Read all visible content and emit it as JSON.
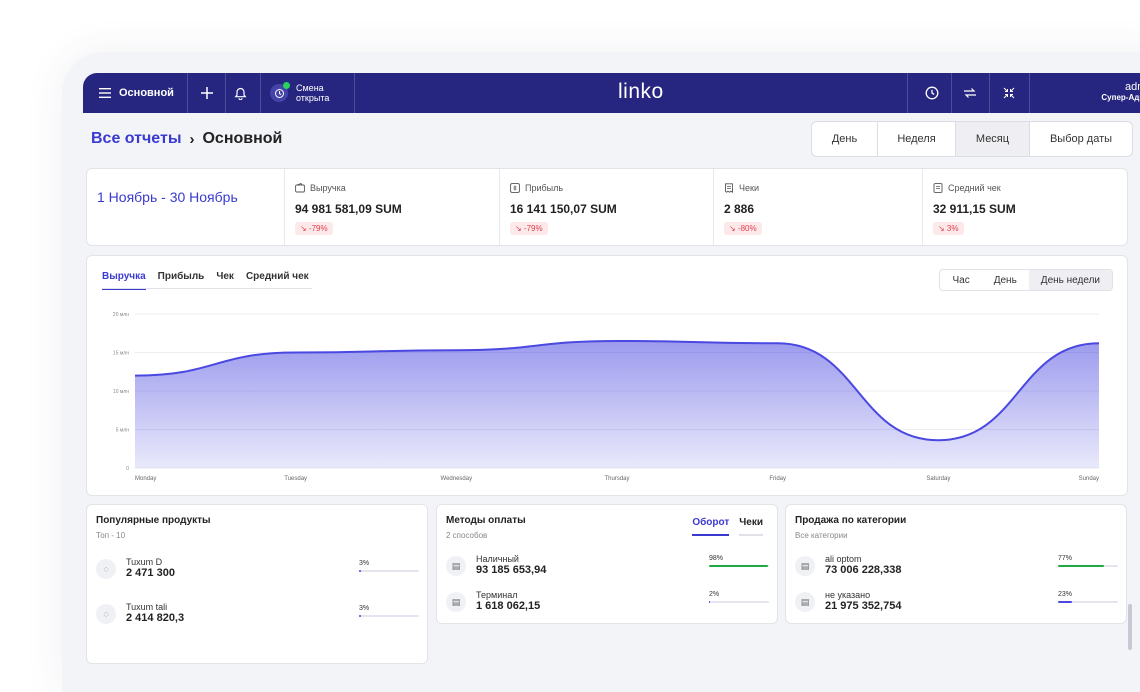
{
  "topbar": {
    "menu_label": "Основной",
    "shift_line1": "Смена",
    "shift_line2": "открыта",
    "logo": "linko",
    "user_name": "admin",
    "user_role": "Супер-Админ",
    "avatar": "ad"
  },
  "breadcrumb": {
    "link": "Все отчеты",
    "separator": "›",
    "current": "Основной"
  },
  "period_tabs": [
    "День",
    "Неделя",
    "Месяц",
    "Выбор даты"
  ],
  "period_active": "Месяц",
  "kpis": {
    "range": "1 Ноябрь - 30 Ноябрь",
    "items": [
      {
        "label": "Выручка",
        "value": "94 981 581,09 SUM",
        "change": "↘ -79%",
        "icon": "wallet-icon"
      },
      {
        "label": "Прибыль",
        "value": "16 141 150,07 SUM",
        "change": "↘ -79%",
        "icon": "money-icon"
      },
      {
        "label": "Чеки",
        "value": "2 886",
        "change": "↘ -80%",
        "icon": "receipt-icon"
      },
      {
        "label": "Средний чек",
        "value": "32 911,15 SUM",
        "change": "↘ 3%",
        "icon": "receipt-icon"
      }
    ]
  },
  "chart_tabs": [
    "Выручка",
    "Прибыль",
    "Чек",
    "Средний чек"
  ],
  "chart_tab_active": "Выручка",
  "chart_modes": [
    "Час",
    "День",
    "День недели"
  ],
  "chart_mode_active": "День недели",
  "chart_data": {
    "type": "area",
    "categories": [
      "Monday",
      "Tuesday",
      "Wednesday",
      "Thursday",
      "Friday",
      "Saturday",
      "Sunday"
    ],
    "values": [
      12,
      15,
      15.3,
      16.5,
      16.2,
      3.6,
      16.2
    ],
    "yticks": [
      "0",
      "5 млн",
      "10 млн",
      "15 млн",
      "20 млн"
    ],
    "ylim": [
      0,
      20
    ],
    "color": "#4a48e0",
    "grid": true
  },
  "popular": {
    "title": "Популярные продукты",
    "subtitle": "Топ - 10",
    "items": [
      {
        "name": "Tuxum D",
        "value": "2 471 300",
        "pct": "3%",
        "frac": 0.03
      },
      {
        "name": "Tuxum tali",
        "value": "2 414 820,3",
        "pct": "3%",
        "frac": 0.03
      }
    ]
  },
  "payments": {
    "title": "Методы оплаты",
    "subtitle": "2 способов",
    "tabs": [
      "Оборот",
      "Чеки"
    ],
    "tab_active": "Оборот",
    "items": [
      {
        "name": "Наличный",
        "value": "93 185 653,94",
        "pct": "98%",
        "frac": 0.98
      },
      {
        "name": "Терминал",
        "value": "1 618 062,15",
        "pct": "2%",
        "frac": 0.02
      }
    ]
  },
  "categories": {
    "title": "Продажа по категории",
    "subtitle": "Все категории",
    "items": [
      {
        "name": "ali optom",
        "value": "73 006 228,338",
        "pct": "77%",
        "frac": 0.77,
        "color": "#22a845"
      },
      {
        "name": "не указано",
        "value": "21 975 352,754",
        "pct": "23%",
        "frac": 0.23,
        "color": "#4a48e0"
      }
    ]
  }
}
